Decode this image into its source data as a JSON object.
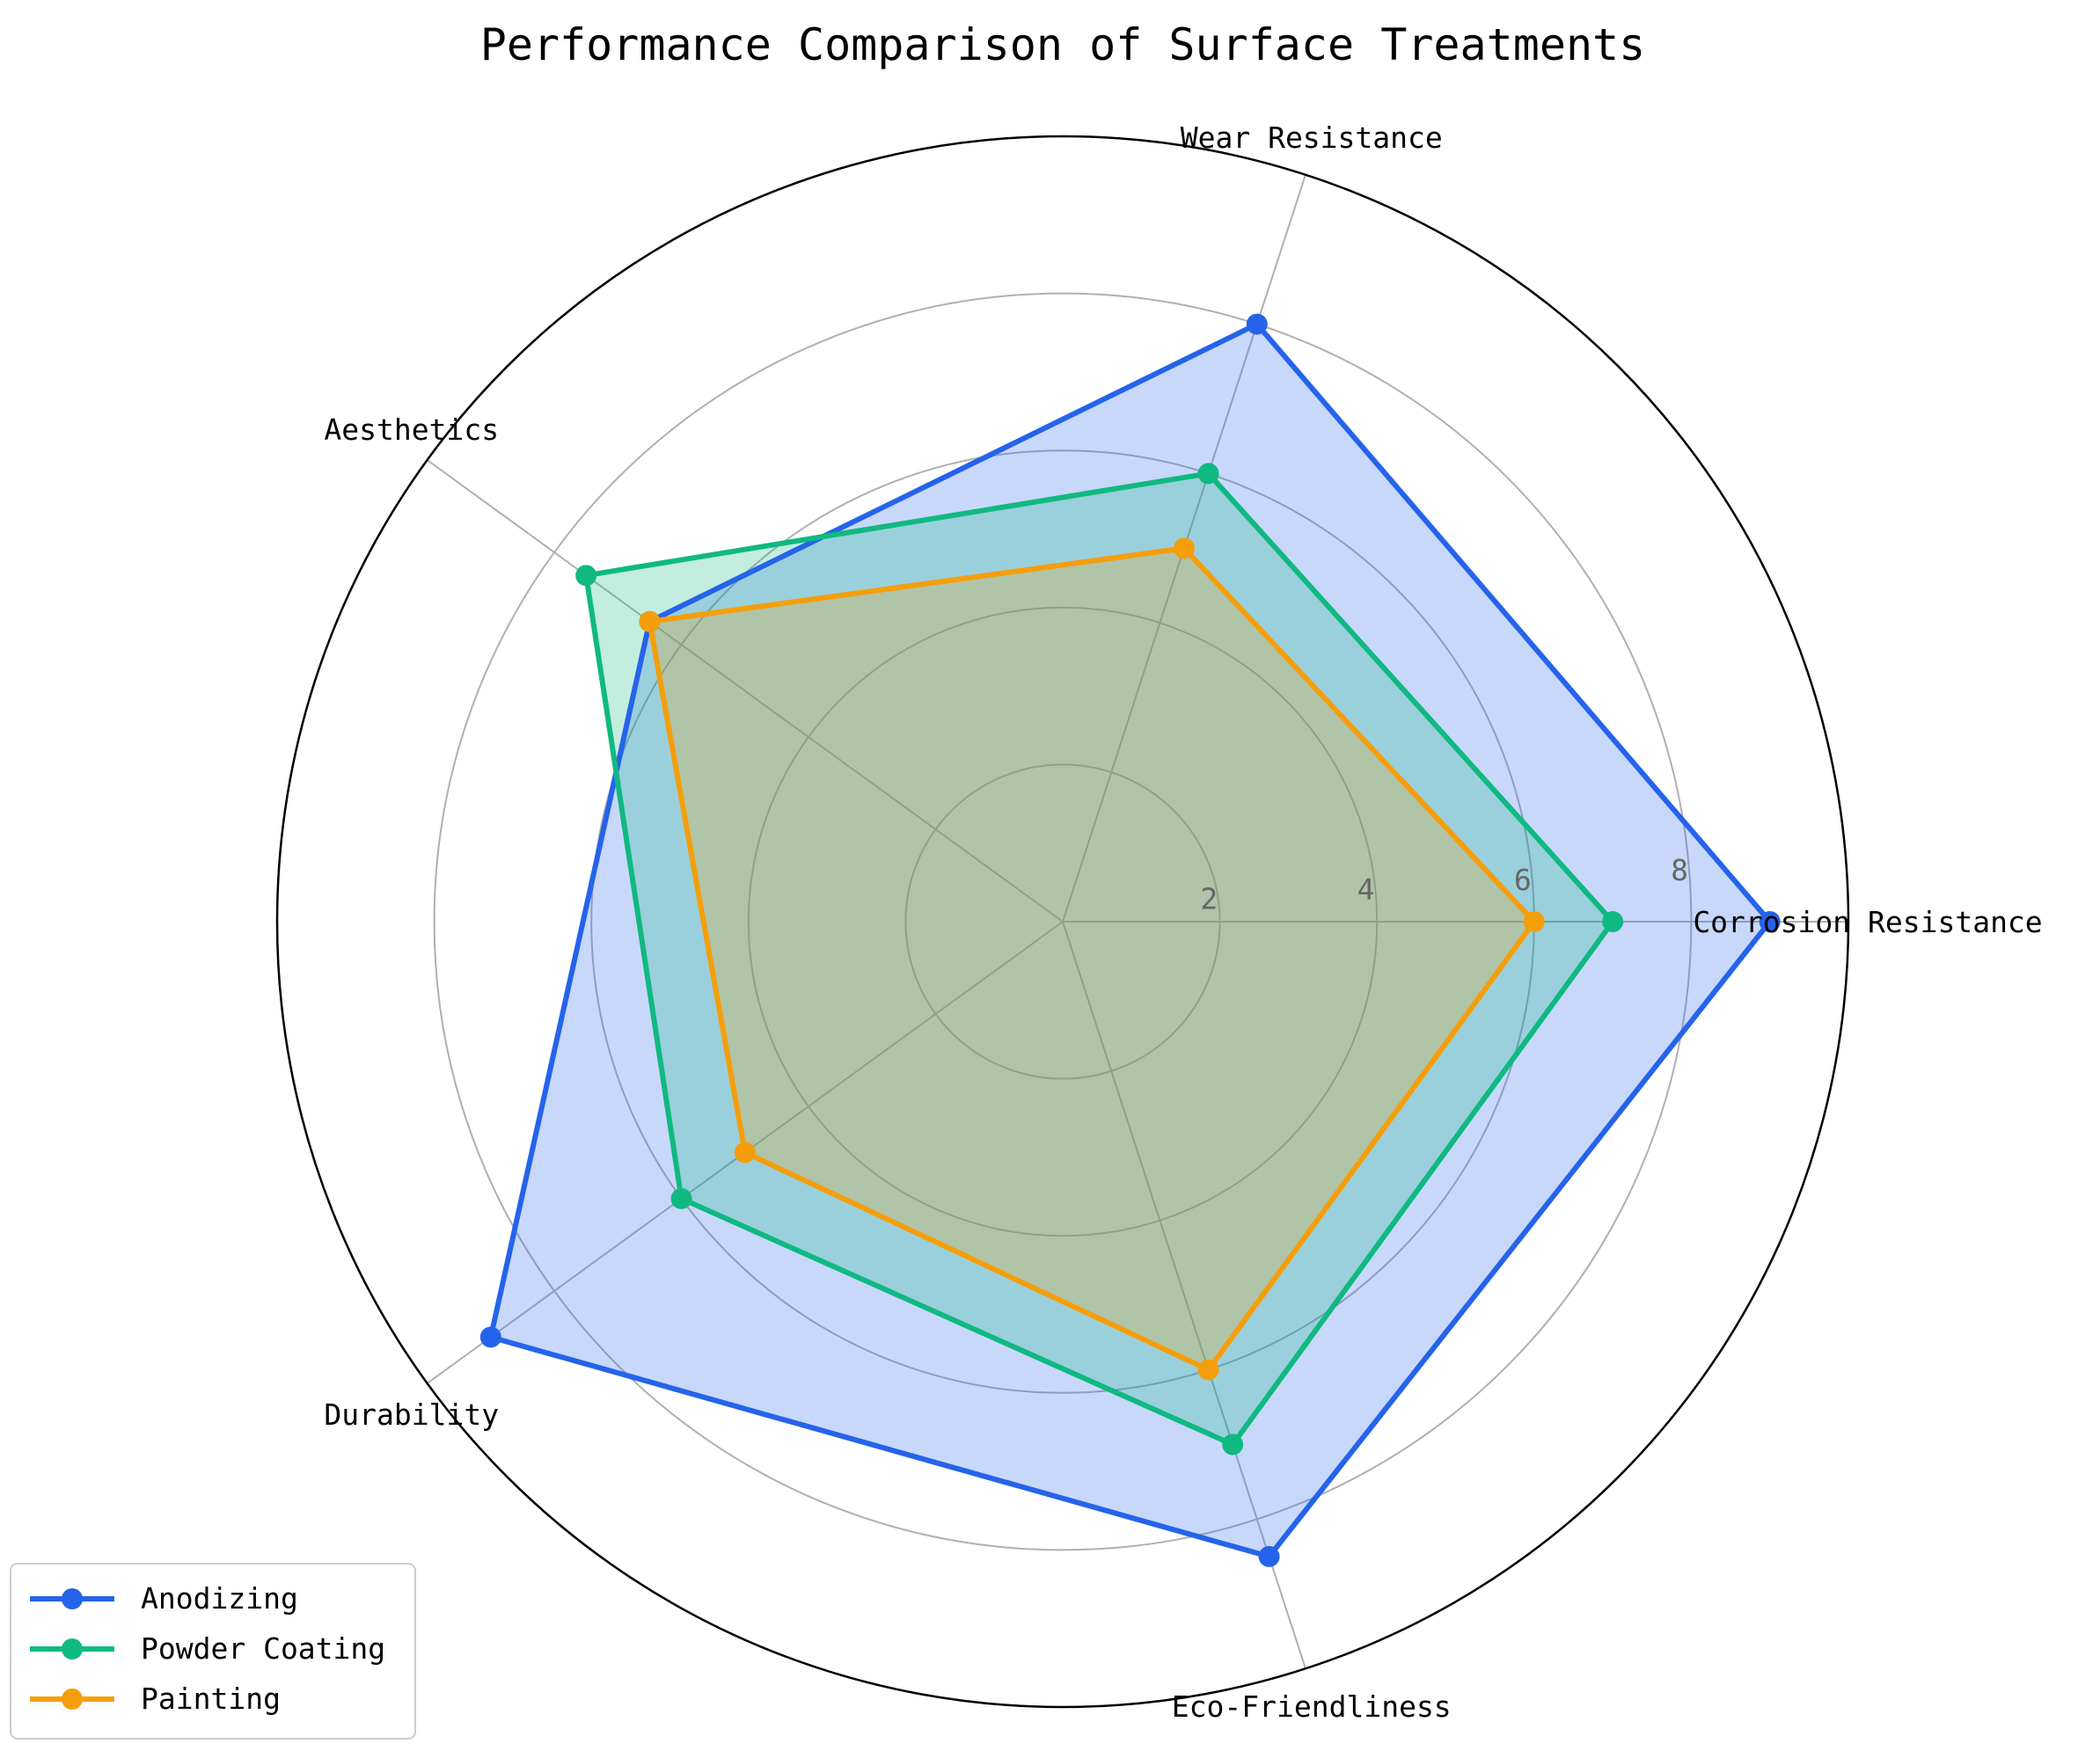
{
  "chart_data": {
    "type": "radar",
    "title": "Performance Comparison of Surface Treatments",
    "categories": [
      "Corrosion Resistance",
      "Wear Resistance",
      "Aesthetics",
      "Durability",
      "Eco-Friendliness"
    ],
    "rlim": [
      0,
      10
    ],
    "rticks": [
      2,
      4,
      6,
      8
    ],
    "rtick_labels": [
      "2",
      "4",
      "6",
      "8"
    ],
    "grid": true,
    "legend_position": "lower-left",
    "series": [
      {
        "name": "Anodizing",
        "color": "#2563eb",
        "values": [
          9,
          8,
          6.5,
          9,
          8.5
        ]
      },
      {
        "name": "Powder Coating",
        "color": "#10b981",
        "values": [
          7,
          6,
          7.5,
          6,
          7
        ]
      },
      {
        "name": "Painting",
        "color": "#f59e0b",
        "values": [
          6,
          5,
          6.5,
          5,
          6
        ]
      }
    ]
  }
}
